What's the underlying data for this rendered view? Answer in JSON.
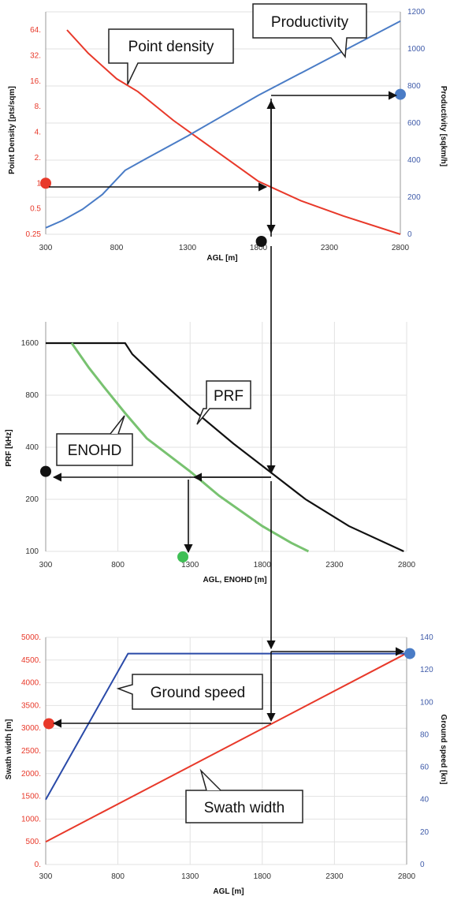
{
  "colors": {
    "red": "#e8392a",
    "blue": "#4a7cc6",
    "darkblue": "#2a4aa8",
    "black": "#111111",
    "green": "#78c270",
    "green_dot": "#3fbf55",
    "red_axis": "#e8392a",
    "blue_axis": "#3f5ba9",
    "grid": "#e2e2e2"
  },
  "chart_data": [
    {
      "type": "line",
      "id": "top",
      "xlabel": "AGL [m]",
      "ylabel_left": "Point Density  [pts/sqm]",
      "ylabel_right": "Productivity  [sqkm/h]",
      "x_ticks": [
        "300",
        "800",
        "1300",
        "1800",
        "2300",
        "2800"
      ],
      "xlim": [
        300,
        2800
      ],
      "y_left_scale": "log2",
      "y_left_ticks": [
        "0.25",
        "0.5",
        "1",
        "2.",
        "4.",
        "8.",
        "16.",
        "32.",
        "64."
      ],
      "y_left_values": [
        0.25,
        0.5,
        1,
        2,
        4,
        8,
        16,
        32,
        64
      ],
      "y_right_ticks": [
        "0",
        "200",
        "400",
        "600",
        "800",
        "1000",
        "1200"
      ],
      "y_right_lim": [
        0,
        1200
      ],
      "series": [
        {
          "name": "Point density",
          "axis": "left",
          "color": "red",
          "x": [
            450,
            600,
            800,
            950,
            1200,
            1500,
            1800,
            2100,
            2400,
            2800
          ],
          "y": [
            64,
            34,
            17,
            12,
            5.5,
            2.4,
            1.05,
            0.62,
            0.41,
            0.25
          ]
        },
        {
          "name": "Productivity",
          "axis": "right",
          "color": "blue",
          "x": [
            300,
            420,
            560,
            700,
            860,
            1000,
            1300,
            1800,
            2300,
            2800
          ],
          "y": [
            35,
            75,
            135,
            215,
            345,
            405,
            530,
            750,
            950,
            1150
          ]
        }
      ],
      "callouts": [
        {
          "text": "Point density"
        },
        {
          "text": "Productivity"
        }
      ],
      "markers": [
        {
          "name": "density-marker",
          "axis": "left",
          "x": 300,
          "y": 1,
          "color": "red"
        },
        {
          "name": "productivity-marker",
          "axis": "right",
          "x": 2800,
          "y": 755,
          "color": "blue"
        },
        {
          "name": "agl-marker",
          "axis": "left",
          "x": 1820,
          "y": 0.25,
          "color": "black"
        }
      ]
    },
    {
      "type": "line",
      "id": "mid",
      "xlabel": "AGL, ENOHD [m]",
      "ylabel": "PRF [kHz]",
      "x_ticks": [
        "300",
        "800",
        "1300",
        "1800",
        "2300",
        "2800"
      ],
      "xlim": [
        300,
        2800
      ],
      "y_scale": "log",
      "y_ticks": [
        "100",
        "200",
        "400",
        "800",
        "1600"
      ],
      "y_values": [
        100,
        200,
        400,
        800,
        1600
      ],
      "series": [
        {
          "name": "PRF",
          "color": "black",
          "x": [
            300,
            850,
            900,
            1100,
            1300,
            1600,
            1850,
            2100,
            2400,
            2780
          ],
          "y": [
            1600,
            1600,
            1380,
            960,
            680,
            420,
            290,
            200,
            140,
            100
          ]
        },
        {
          "name": "ENOHD",
          "color": "green",
          "x": [
            480,
            600,
            700,
            850,
            1000,
            1300,
            1500,
            1800,
            2000,
            2120
          ],
          "y": [
            1600,
            1150,
            900,
            630,
            450,
            290,
            210,
            140,
            112,
            100
          ]
        }
      ],
      "callouts": [
        {
          "text": "PRF"
        },
        {
          "text": "ENOHD"
        }
      ],
      "markers": [
        {
          "name": "prf-marker",
          "x": 300,
          "y": 290,
          "color": "black"
        },
        {
          "name": "enohd-marker",
          "x": 1250,
          "y": 100,
          "color": "green_dot"
        }
      ]
    },
    {
      "type": "line",
      "id": "bottom",
      "xlabel": "AGL [m]",
      "ylabel_left": "Swath width  [m]",
      "ylabel_right": "Ground speed [kn]",
      "x_ticks": [
        "300",
        "800",
        "1300",
        "1800",
        "2300",
        "2800"
      ],
      "xlim": [
        300,
        2800
      ],
      "y_left_ticks": [
        "0.",
        "500.",
        "1000.",
        "1500.",
        "2000.",
        "2500.",
        "3000.",
        "3500.",
        "4000.",
        "4500.",
        "5000."
      ],
      "y_left_lim": [
        0,
        5000
      ],
      "y_right_ticks": [
        "0",
        "20",
        "40",
        "60",
        "80",
        "100",
        "120",
        "140"
      ],
      "y_right_lim": [
        0,
        140
      ],
      "series": [
        {
          "name": "Swath width",
          "axis": "left",
          "color": "red",
          "x": [
            300,
            2800
          ],
          "y": [
            500,
            4650
          ]
        },
        {
          "name": "Ground speed",
          "axis": "right",
          "color": "darkblue",
          "x": [
            300,
            870,
            2800
          ],
          "y": [
            40,
            130,
            130
          ]
        }
      ],
      "callouts": [
        {
          "text": "Ground speed"
        },
        {
          "text": "Swath width"
        }
      ],
      "markers": [
        {
          "name": "swath-marker",
          "axis": "left",
          "x": 300,
          "y": 3100,
          "color": "red"
        },
        {
          "name": "speed-marker",
          "axis": "right",
          "x": 2800,
          "y": 130,
          "color": "blue"
        }
      ]
    }
  ]
}
